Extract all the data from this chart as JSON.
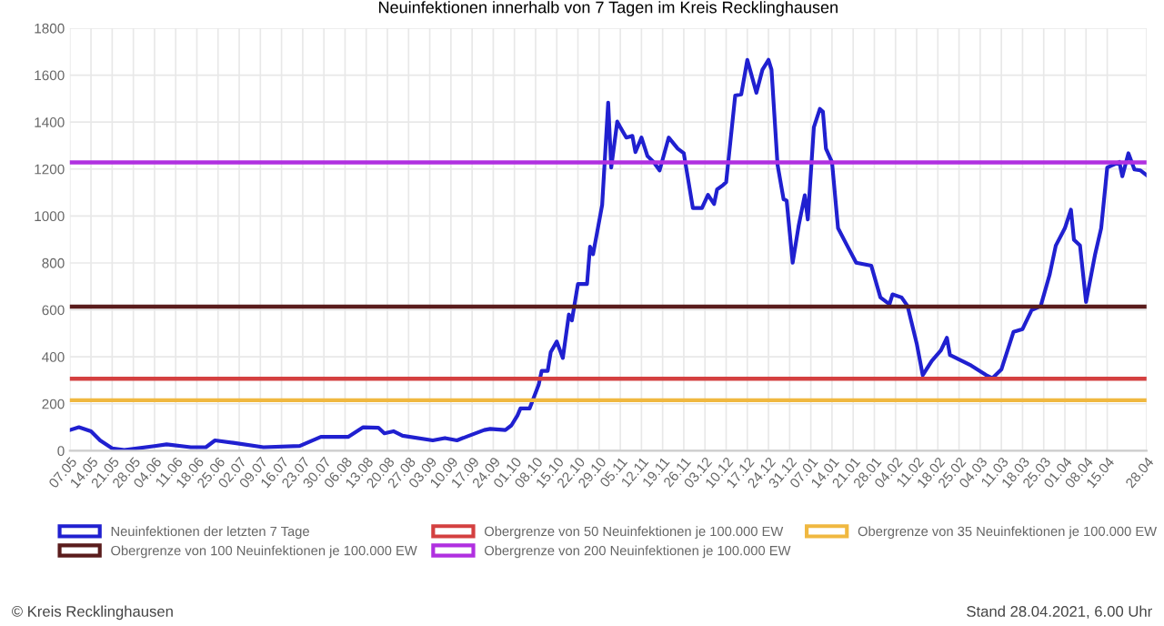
{
  "chart_data": {
    "type": "line",
    "title": "Neuinfektionen innerhalb von 7 Tagen im Kreis Recklinghausen",
    "xlim": [
      "2020-05-07",
      "2021-04-28"
    ],
    "xticks": [
      {
        "value": "2020-05-07",
        "label": "07.05"
      },
      {
        "value": "2020-05-14",
        "label": "14.05"
      },
      {
        "value": "2020-05-21",
        "label": "21.05"
      },
      {
        "value": "2020-05-28",
        "label": "28.05"
      },
      {
        "value": "2020-06-04",
        "label": "04.06"
      },
      {
        "value": "2020-06-11",
        "label": "11.06"
      },
      {
        "value": "2020-06-18",
        "label": "18.06"
      },
      {
        "value": "2020-06-25",
        "label": "25.06"
      },
      {
        "value": "2020-07-02",
        "label": "02.07"
      },
      {
        "value": "2020-07-09",
        "label": "09.07"
      },
      {
        "value": "2020-07-16",
        "label": "16.07"
      },
      {
        "value": "2020-07-23",
        "label": "23.07"
      },
      {
        "value": "2020-07-30",
        "label": "30.07"
      },
      {
        "value": "2020-08-06",
        "label": "06.08"
      },
      {
        "value": "2020-08-13",
        "label": "13.08"
      },
      {
        "value": "2020-08-20",
        "label": "20.08"
      },
      {
        "value": "2020-08-27",
        "label": "27.08"
      },
      {
        "value": "2020-09-03",
        "label": "03.09"
      },
      {
        "value": "2020-09-10",
        "label": "10.09"
      },
      {
        "value": "2020-09-17",
        "label": "17.09"
      },
      {
        "value": "2020-09-24",
        "label": "24.09"
      },
      {
        "value": "2020-10-01",
        "label": "01.10"
      },
      {
        "value": "2020-10-08",
        "label": "08.10"
      },
      {
        "value": "2020-10-15",
        "label": "15.10"
      },
      {
        "value": "2020-10-22",
        "label": "22.10"
      },
      {
        "value": "2020-10-29",
        "label": "29.10"
      },
      {
        "value": "2020-11-05",
        "label": "05.11"
      },
      {
        "value": "2020-11-12",
        "label": "12.11"
      },
      {
        "value": "2020-11-19",
        "label": "19.11"
      },
      {
        "value": "2020-11-26",
        "label": "26.11"
      },
      {
        "value": "2020-12-03",
        "label": "03.12"
      },
      {
        "value": "2020-12-10",
        "label": "10.12"
      },
      {
        "value": "2020-12-17",
        "label": "17.12"
      },
      {
        "value": "2020-12-24",
        "label": "24.12"
      },
      {
        "value": "2020-12-31",
        "label": "31.12"
      },
      {
        "value": "2021-01-07",
        "label": "07.01"
      },
      {
        "value": "2021-01-14",
        "label": "14.01"
      },
      {
        "value": "2021-01-21",
        "label": "21.01"
      },
      {
        "value": "2021-01-28",
        "label": "28.01"
      },
      {
        "value": "2021-02-04",
        "label": "04.02"
      },
      {
        "value": "2021-02-11",
        "label": "11.02"
      },
      {
        "value": "2021-02-18",
        "label": "18.02"
      },
      {
        "value": "2021-02-25",
        "label": "25.02"
      },
      {
        "value": "2021-03-04",
        "label": "04.03"
      },
      {
        "value": "2021-03-11",
        "label": "11.03"
      },
      {
        "value": "2021-03-18",
        "label": "18.03"
      },
      {
        "value": "2021-03-25",
        "label": "25.03"
      },
      {
        "value": "2021-04-01",
        "label": "01.04"
      },
      {
        "value": "2021-04-08",
        "label": "08.04"
      },
      {
        "value": "2021-04-15",
        "label": "15.04"
      },
      {
        "value": "2021-04-28",
        "label": "28.04"
      }
    ],
    "ylim": [
      0,
      1800
    ],
    "yticks": [
      0,
      200,
      400,
      600,
      800,
      1000,
      1200,
      1400,
      1600,
      1800
    ],
    "grid": true,
    "legend": "bottom",
    "marker": "none",
    "line_style": "solid",
    "series": [
      {
        "name": "Neuinfektionen der letzten 7 Tage",
        "color": "#2020d0",
        "x": [
          "2020-05-07",
          "2020-05-10",
          "2020-05-14",
          "2020-05-17",
          "2020-05-21",
          "2020-05-25",
          "2020-06-04",
          "2020-06-08",
          "2020-06-16",
          "2020-06-21",
          "2020-06-24",
          "2020-06-30",
          "2020-07-10",
          "2020-07-22",
          "2020-07-29",
          "2020-08-07",
          "2020-08-12",
          "2020-08-17",
          "2020-08-19",
          "2020-08-22",
          "2020-08-25",
          "2020-09-04",
          "2020-09-08",
          "2020-09-12",
          "2020-09-16",
          "2020-09-21",
          "2020-09-23",
          "2020-09-28",
          "2020-09-30",
          "2020-10-02",
          "2020-10-03",
          "2020-10-06",
          "2020-10-09",
          "2020-10-10",
          "2020-10-12",
          "2020-10-13",
          "2020-10-15",
          "2020-10-17",
          "2020-10-19",
          "2020-10-20",
          "2020-10-22",
          "2020-10-25",
          "2020-10-26",
          "2020-10-27",
          "2020-10-30",
          "2020-11-01",
          "2020-11-02",
          "2020-11-04",
          "2020-11-05",
          "2020-11-07",
          "2020-11-09",
          "2020-11-10",
          "2020-11-12",
          "2020-11-14",
          "2020-11-16",
          "2020-11-18",
          "2020-11-21",
          "2020-11-24",
          "2020-11-26",
          "2020-11-29",
          "2020-12-02",
          "2020-12-04",
          "2020-12-06",
          "2020-12-07",
          "2020-12-09",
          "2020-12-10",
          "2020-12-13",
          "2020-12-15",
          "2020-12-17",
          "2020-12-20",
          "2020-12-22",
          "2020-12-24",
          "2020-12-25",
          "2020-12-27",
          "2020-12-29",
          "2020-12-30",
          "2021-01-01",
          "2021-01-03",
          "2021-01-05",
          "2021-01-06",
          "2021-01-08",
          "2021-01-10",
          "2021-01-11",
          "2021-01-12",
          "2021-01-14",
          "2021-01-16",
          "2021-01-19",
          "2021-01-22",
          "2021-01-27",
          "2021-01-30",
          "2021-02-02",
          "2021-02-03",
          "2021-02-06",
          "2021-02-08",
          "2021-02-11",
          "2021-02-13",
          "2021-02-16",
          "2021-02-19",
          "2021-02-21",
          "2021-02-22",
          "2021-03-01",
          "2021-03-06",
          "2021-03-08",
          "2021-03-11",
          "2021-03-15",
          "2021-03-18",
          "2021-03-21",
          "2021-03-24",
          "2021-03-27",
          "2021-03-29",
          "2021-04-01",
          "2021-04-03",
          "2021-04-04",
          "2021-04-06",
          "2021-04-08",
          "2021-04-11",
          "2021-04-13",
          "2021-04-15",
          "2021-04-17",
          "2021-04-19",
          "2021-04-20",
          "2021-04-22",
          "2021-04-24",
          "2021-04-26",
          "2021-04-28"
        ],
        "values": [
          88,
          100,
          83,
          44,
          10,
          3,
          20,
          27,
          15,
          15,
          44,
          34,
          15,
          20,
          59,
          59,
          100,
          98,
          74,
          83,
          64,
          44,
          54,
          44,
          64,
          88,
          93,
          88,
          108,
          150,
          180,
          180,
          280,
          340,
          340,
          420,
          465,
          395,
          580,
          555,
          710,
          710,
          869,
          837,
          1046,
          1483,
          1206,
          1402,
          1378,
          1334,
          1341,
          1272,
          1334,
          1255,
          1230,
          1194,
          1334,
          1287,
          1267,
          1034,
          1034,
          1090,
          1051,
          1113,
          1132,
          1144,
          1513,
          1518,
          1665,
          1525,
          1623,
          1665,
          1623,
          1218,
          1071,
          1066,
          801,
          960,
          1088,
          985,
          1378,
          1456,
          1444,
          1287,
          1230,
          948,
          874,
          801,
          788,
          653,
          624,
          666,
          653,
          616,
          457,
          322,
          383,
          427,
          481,
          408,
          363,
          322,
          309,
          346,
          506,
          518,
          599,
          616,
          752,
          874,
          948,
          1027,
          899,
          874,
          634,
          837,
          948,
          1206,
          1218,
          1230,
          1169,
          1267,
          1198,
          1194,
          1174
        ]
      },
      {
        "name": "Obergrenze von 50 Neuinfektionen je 100.000 EW",
        "color": "#d44040",
        "x": [
          "2020-05-07",
          "2021-04-28"
        ],
        "values": [
          307,
          307
        ]
      },
      {
        "name": "Obergrenze von 35 Neuinfektionen je 100.000 EW",
        "color": "#f0b840",
        "x": [
          "2020-05-07",
          "2021-04-28"
        ],
        "values": [
          215,
          215
        ]
      },
      {
        "name": "Obergrenze von 100 Neuinfektionen je 100.000 EW",
        "color": "#5a1c1c",
        "x": [
          "2020-05-07",
          "2021-04-28"
        ],
        "values": [
          614,
          614
        ]
      },
      {
        "name": "Obergrenze von 200 Neuinfektionen je 100.000 EW",
        "color": "#b030e0",
        "x": [
          "2020-05-07",
          "2021-04-28"
        ],
        "values": [
          1228,
          1228
        ]
      }
    ],
    "annotations": [
      "© Kreis Recklinghausen",
      "Stand 28.04.2021, 6.00 Uhr"
    ]
  }
}
